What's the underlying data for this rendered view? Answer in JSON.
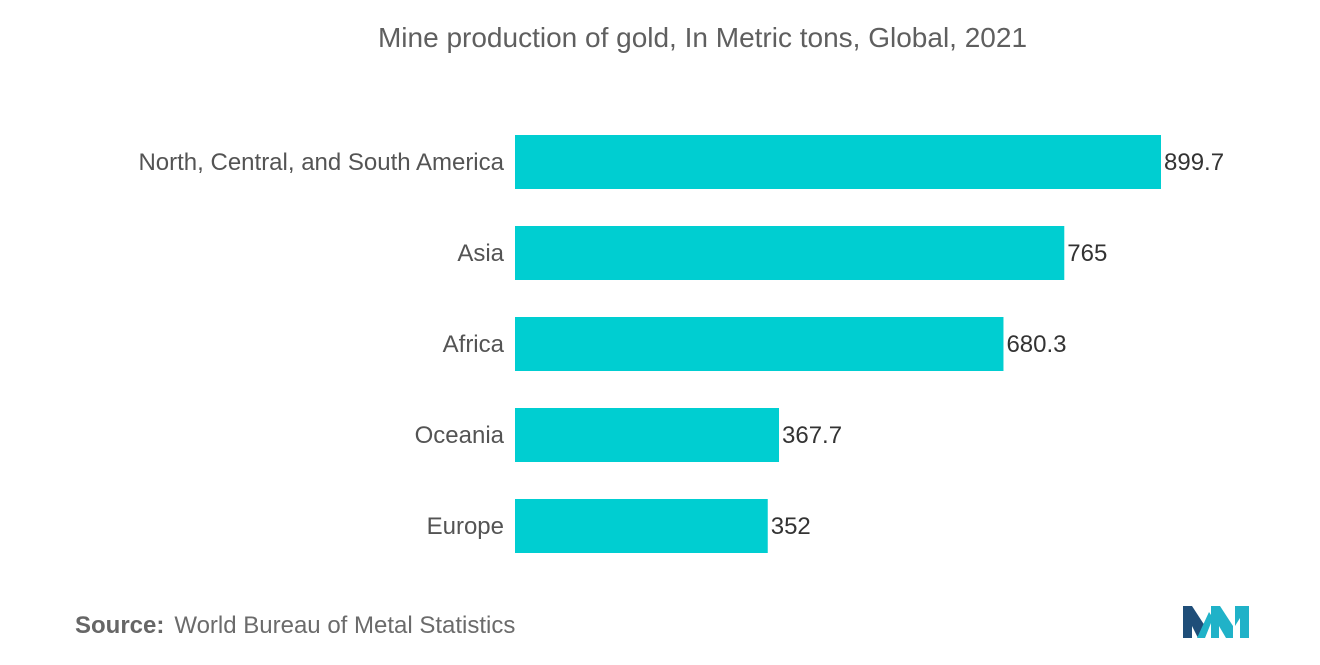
{
  "chart_data": {
    "type": "bar",
    "orientation": "horizontal",
    "title": "Mine production of gold, In Metric tons, Global, 2021",
    "categories": [
      "North, Central, and South America",
      "Asia",
      "Africa",
      "Oceania",
      "Europe"
    ],
    "values": [
      899.7,
      765,
      680.3,
      367.7,
      352
    ],
    "value_labels": [
      "899.7",
      "765",
      "680.3",
      "367.7",
      "352"
    ],
    "xlim": [
      0,
      899.7
    ],
    "grid": false,
    "legend": "none",
    "bar_color": "#00ced1"
  },
  "source": {
    "prefix": "Source:",
    "text": "World Bureau of Metal Statistics"
  },
  "logo": {
    "icon": "mordor-intelligence-logo-icon",
    "colors": [
      "#1f4e79",
      "#20b2c8"
    ]
  }
}
